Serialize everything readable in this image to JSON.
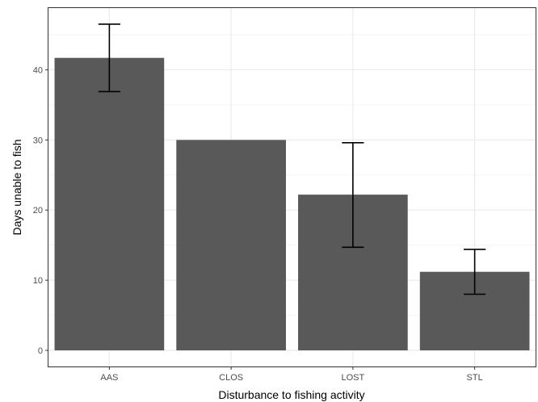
{
  "chart_data": {
    "type": "bar",
    "categories": [
      "AAS",
      "CLOS",
      "LOST",
      "STL"
    ],
    "values": [
      41.7,
      30.0,
      22.2,
      11.2
    ],
    "error_bars": {
      "lower": [
        36.9,
        30.0,
        14.7,
        8.0
      ],
      "upper": [
        46.5,
        30.0,
        29.6,
        14.4
      ]
    },
    "title": "",
    "xlabel": "Disturbance to fishing activity",
    "ylabel": "Days unable to fish",
    "ylim": [
      -2.3,
      48.8
    ],
    "yticks": [
      0,
      10,
      20,
      30,
      40
    ],
    "grid": true,
    "colors": {
      "bar": "#595959",
      "error_bar": "#000000",
      "grid_major": "#ebebeb",
      "grid_minor": "#f5f5f5",
      "panel_border": "#333333",
      "tick_text": "#4d4d4d"
    }
  }
}
